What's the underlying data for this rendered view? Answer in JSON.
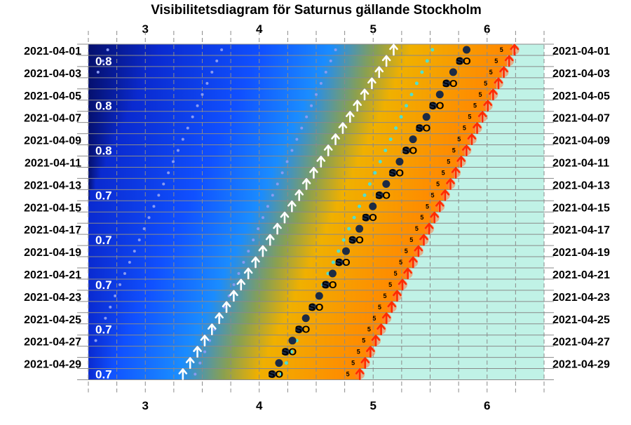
{
  "chart_data": {
    "type": "scatter",
    "title": "Visibilitetsdiagram för Saturnus gällande Stockholm",
    "x_range": [
      2.5,
      6.5
    ],
    "x_ticks": [
      "3",
      "4",
      "5",
      "6"
    ],
    "x_tick_values": [
      3,
      4,
      5,
      6
    ],
    "x_minor_ticks": [
      2.75,
      3.25,
      3.5,
      3.75,
      4.25,
      4.5,
      4.75,
      5.25,
      5.5,
      5.75,
      6.25
    ],
    "dates": [
      "2021-04-01",
      "2021-04-02",
      "2021-04-03",
      "2021-04-04",
      "2021-04-05",
      "2021-04-06",
      "2021-04-07",
      "2021-04-08",
      "2021-04-09",
      "2021-04-10",
      "2021-04-11",
      "2021-04-12",
      "2021-04-13",
      "2021-04-14",
      "2021-04-15",
      "2021-04-16",
      "2021-04-17",
      "2021-04-18",
      "2021-04-19",
      "2021-04-20",
      "2021-04-21",
      "2021-04-22",
      "2021-04-23",
      "2021-04-24",
      "2021-04-25",
      "2021-04-26",
      "2021-04-27",
      "2021-04-28",
      "2021-04-29",
      "2021-04-30"
    ],
    "date_labels": [
      "2021-04-01",
      "2021-04-03",
      "2021-04-05",
      "2021-04-07",
      "2021-04-09",
      "2021-04-11",
      "2021-04-13",
      "2021-04-15",
      "2021-04-17",
      "2021-04-19",
      "2021-04-21",
      "2021-04-23",
      "2021-04-25",
      "2021-04-27",
      "2021-04-29"
    ],
    "magnitude_labels": [
      {
        "date": "2021-04-02",
        "value": "0.8"
      },
      {
        "date": "2021-04-06",
        "value": "0.8"
      },
      {
        "date": "2021-04-10",
        "value": "0.8"
      },
      {
        "date": "2021-04-14",
        "value": "0.7"
      },
      {
        "date": "2021-04-18",
        "value": "0.7"
      },
      {
        "date": "2021-04-22",
        "value": "0.7"
      },
      {
        "date": "2021-04-26",
        "value": "0.7"
      },
      {
        "date": "2021-04-30",
        "value": "0.7"
      }
    ],
    "sky_zones": {
      "night_end_start": 4.02,
      "civil_dawn_start": 5.48,
      "sunrise_start": 6.22,
      "daily_shift": -0.0463
    },
    "planet_rise": {
      "label": "↑",
      "color": "#ffffff",
      "x_start": 5.18,
      "daily_shift": -0.0638
    },
    "sunrise": {
      "label": "↑",
      "color": "#ff2a00",
      "x_start": 6.24,
      "daily_shift": -0.0468
    },
    "dawn_points": {
      "color": "#4fe0d0",
      "x_start": 5.52,
      "daily_shift": -0.0458
    },
    "sun_altitude_markers": {
      "text": "5",
      "x_start": 6.16,
      "daily_shift": -0.0465
    },
    "planet_points": {
      "color": "#1c2b45",
      "so_label": "SO",
      "x_start": 5.82,
      "daily_shift": -0.0588
    },
    "guide_dots": {
      "color": "#8a9bf0",
      "series_start": [
        4.67,
        3.67,
        2.67
      ],
      "daily_shift": -0.0425
    },
    "colors": {
      "night": "#05106e",
      "deep_blue": "#0a2ad0",
      "blue": "#1050ff",
      "sky": "#1a8cff",
      "olive": "#8aa050",
      "gold": "#f0b000",
      "orange": "#ff8a00",
      "day": "#c0f2e6",
      "grid": "#8a8a8a"
    }
  }
}
